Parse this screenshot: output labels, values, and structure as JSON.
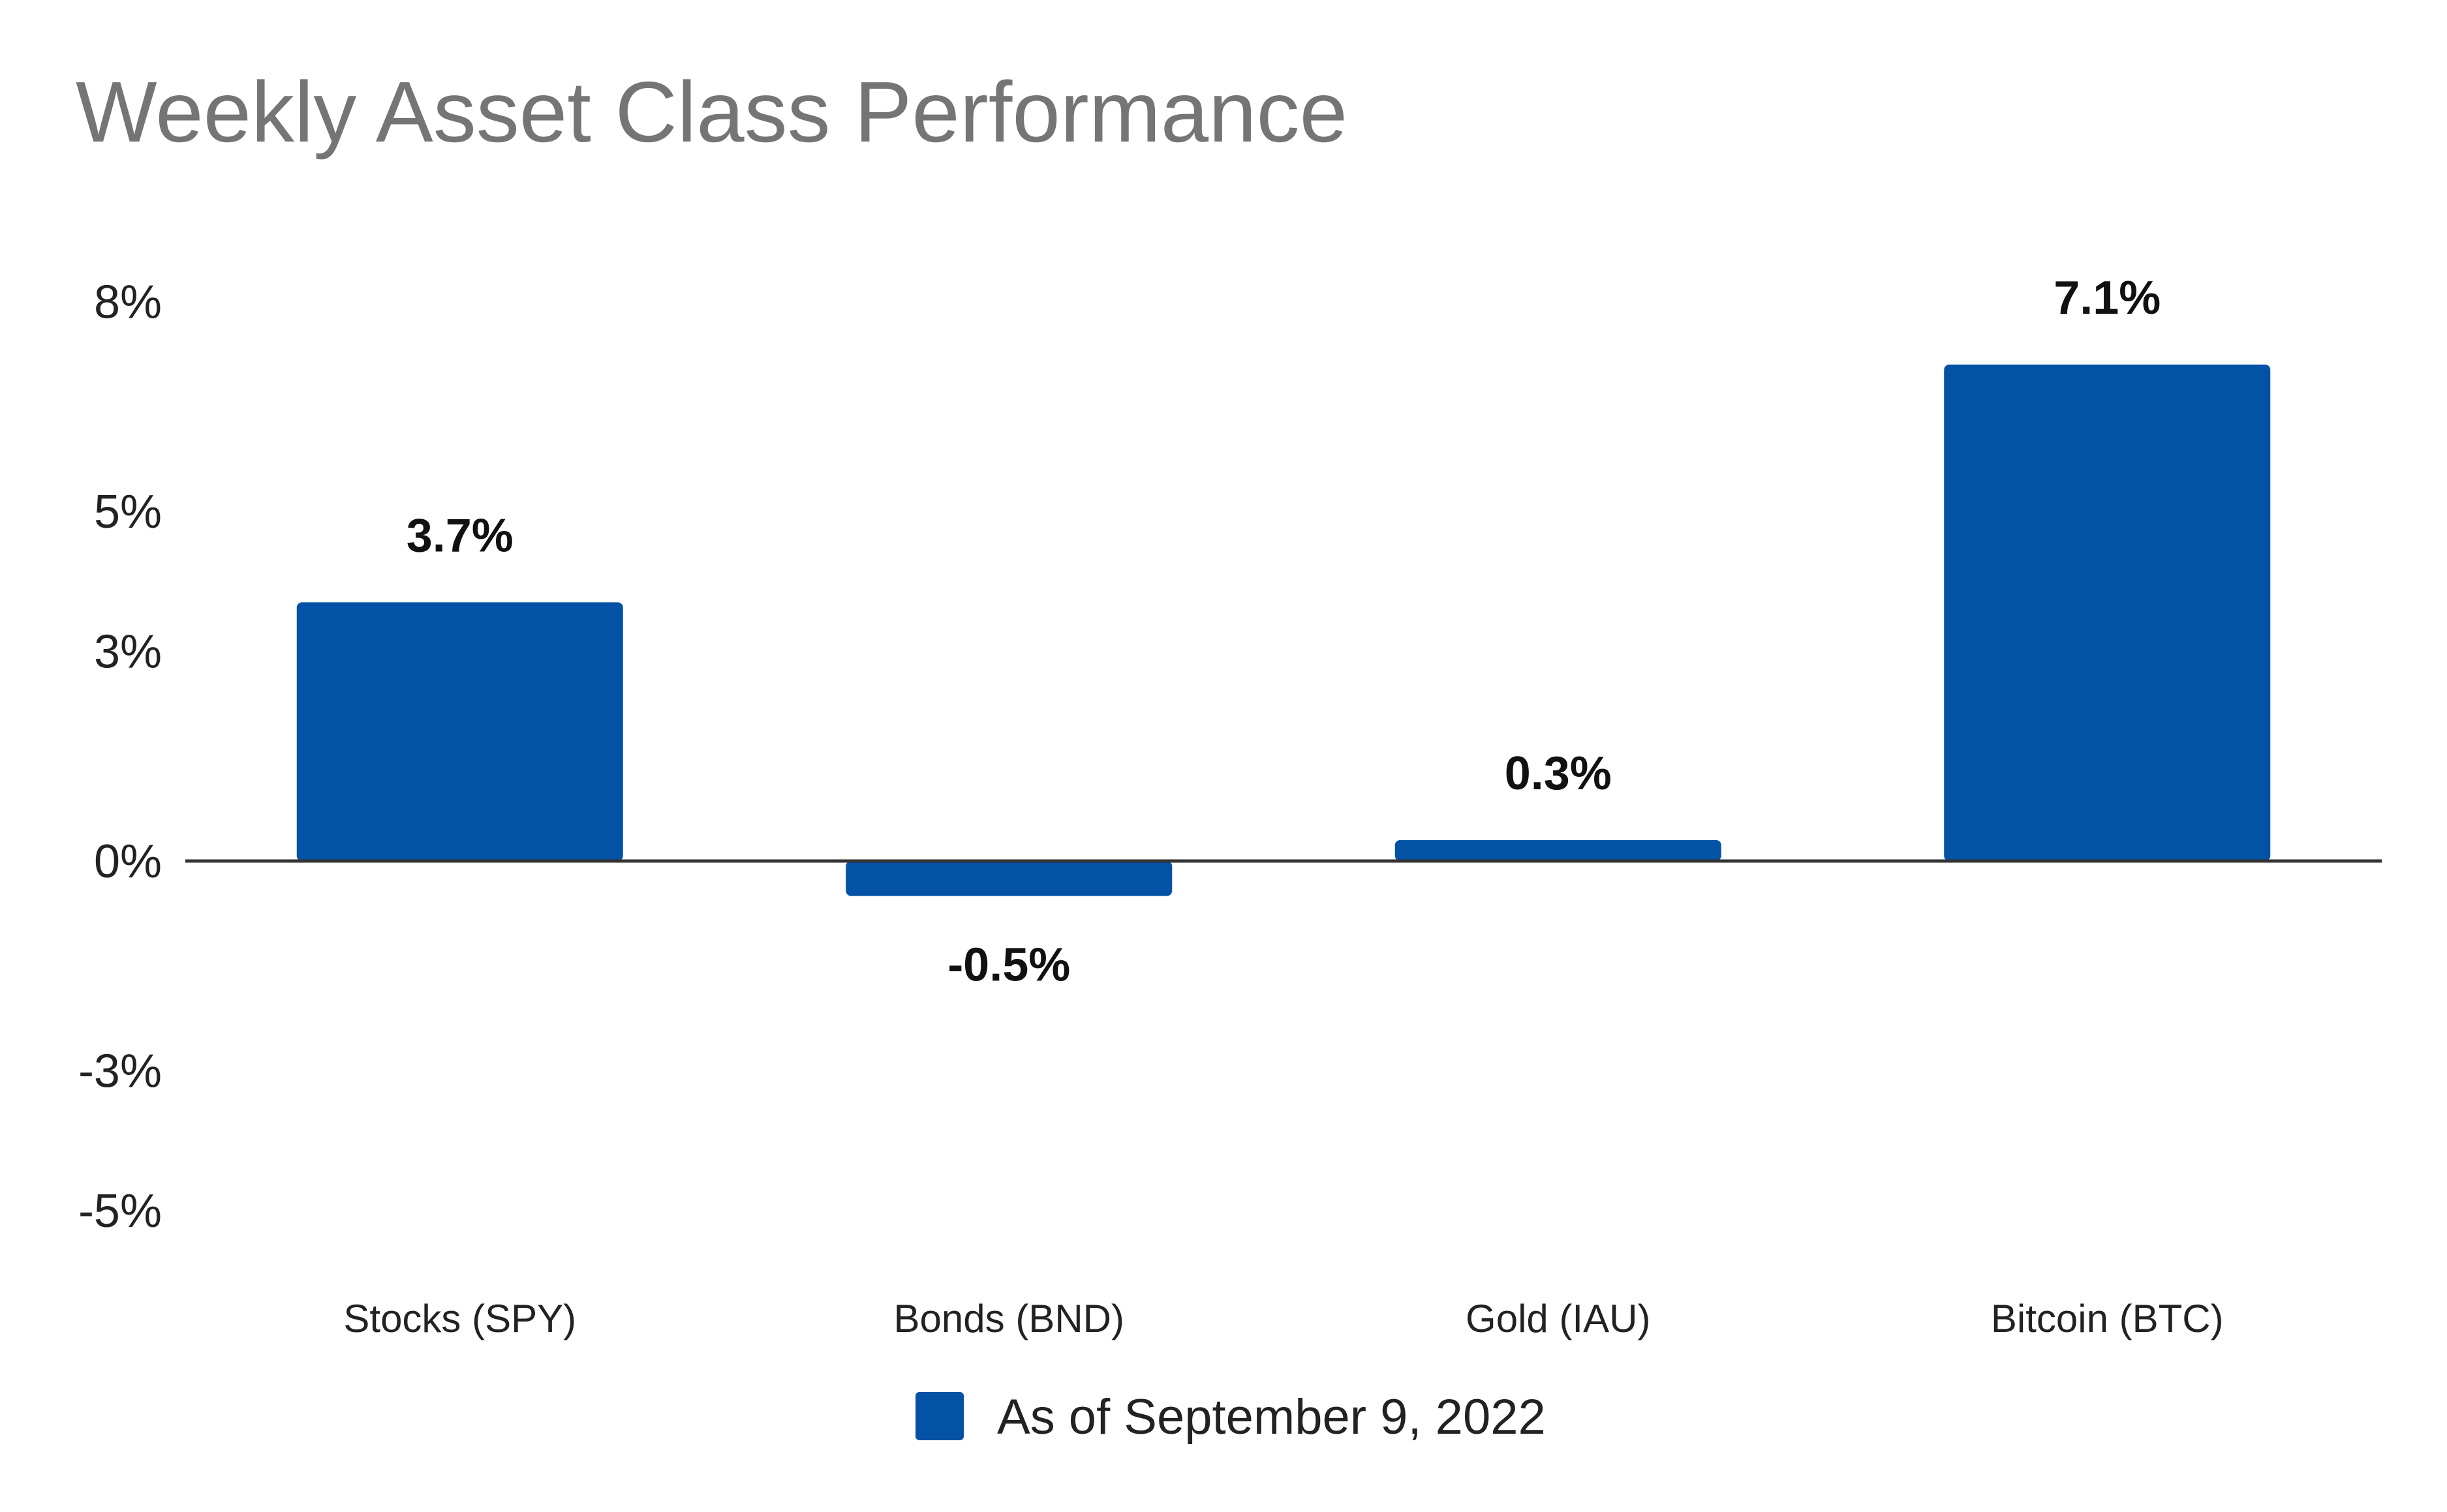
{
  "chart_data": {
    "type": "bar",
    "title": "Weekly Asset Class Performance",
    "categories": [
      "Stocks (SPY)",
      "Bonds (BND)",
      "Gold (IAU)",
      "Bitcoin (BTC)"
    ],
    "series": [
      {
        "name": "As of September 9, 2022",
        "values": [
          3.7,
          -0.5,
          0.3,
          7.1
        ],
        "labels": [
          "3.7%",
          "-0.5%",
          "0.3%",
          "7.1%"
        ],
        "color": "#0352a5"
      }
    ],
    "ylim": [
      -5,
      8
    ],
    "yticks": [
      {
        "value": 8,
        "label": "8%"
      },
      {
        "value": 5,
        "label": "5%"
      },
      {
        "value": 3,
        "label": "3%"
      },
      {
        "value": 0,
        "label": "0%"
      },
      {
        "value": -3,
        "label": "-3%"
      },
      {
        "value": -5,
        "label": "-5%"
      }
    ],
    "xlabel": "",
    "ylabel": "",
    "grid": false,
    "legend": "bottom-center"
  },
  "colors": {
    "bar": "#0352a5",
    "title": "#757575",
    "axis": "#333333"
  }
}
